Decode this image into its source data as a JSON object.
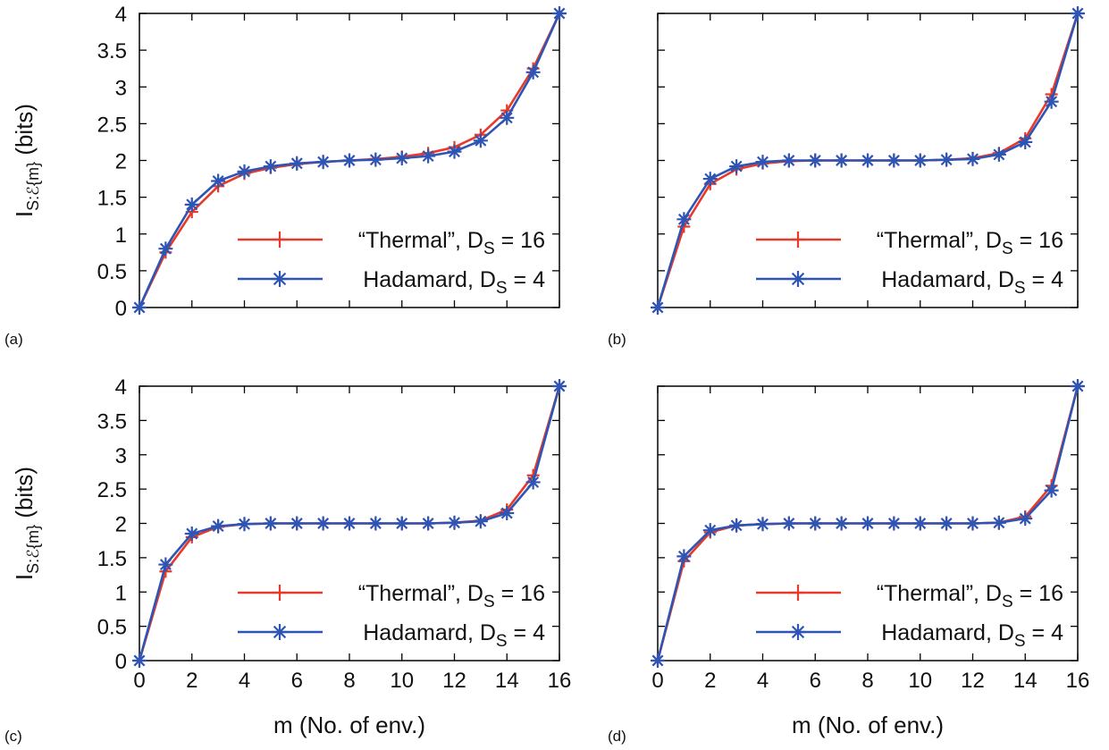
{
  "figure": {
    "ylabel_main": "I",
    "ylabel_sub": "S:ℰ{m}",
    "ylabel_unit": "(bits)",
    "xlabel": "m (No. of env.)"
  },
  "chart_data": [
    {
      "type": "line",
      "panel_label": "(a)",
      "xlim": [
        0,
        16
      ],
      "ylim": [
        0,
        4
      ],
      "x_ticks": [
        "0",
        "2",
        "4",
        "6",
        "8",
        "10",
        "12",
        "14",
        "16"
      ],
      "y_ticks": [
        "0",
        "0.5",
        "1",
        "1.5",
        "2",
        "2.5",
        "3",
        "3.5",
        "4"
      ],
      "show_x_ticklabels": false,
      "show_y_ticklabels": true,
      "show_ylabel": true,
      "show_xlabel": false,
      "legend_position": "bottom-right",
      "x": [
        0,
        1,
        2,
        3,
        4,
        5,
        6,
        7,
        8,
        9,
        10,
        11,
        12,
        13,
        14,
        15,
        16
      ],
      "series": [
        {
          "name_main": "“Thermal”, D",
          "name_sub": "S",
          "name_tail": " = 16",
          "color": "#e8392a",
          "marker": "plus",
          "values": [
            0,
            0.75,
            1.3,
            1.65,
            1.82,
            1.9,
            1.95,
            1.98,
            2.0,
            2.02,
            2.05,
            2.1,
            2.18,
            2.35,
            2.68,
            3.25,
            4.0
          ]
        },
        {
          "name_main": "Hadamard, D",
          "name_sub": "S",
          "name_tail": " = 4",
          "color": "#2f55b4",
          "marker": "star",
          "values": [
            0,
            0.8,
            1.4,
            1.72,
            1.85,
            1.92,
            1.96,
            1.98,
            2.0,
            2.01,
            2.03,
            2.06,
            2.12,
            2.27,
            2.58,
            3.2,
            4.0
          ]
        }
      ]
    },
    {
      "type": "line",
      "panel_label": "(b)",
      "xlim": [
        0,
        16
      ],
      "ylim": [
        0,
        4
      ],
      "x_ticks": [
        "0",
        "2",
        "4",
        "6",
        "8",
        "10",
        "12",
        "14",
        "16"
      ],
      "y_ticks": [
        "0",
        "0.5",
        "1",
        "1.5",
        "2",
        "2.5",
        "3",
        "3.5",
        "4"
      ],
      "show_x_ticklabels": false,
      "show_y_ticklabels": false,
      "show_ylabel": false,
      "show_xlabel": false,
      "legend_position": "bottom-right",
      "x": [
        0,
        1,
        2,
        3,
        4,
        5,
        6,
        7,
        8,
        9,
        10,
        11,
        12,
        13,
        14,
        15,
        16
      ],
      "series": [
        {
          "name_main": "“Thermal”, D",
          "name_sub": "S",
          "name_tail": " = 16",
          "color": "#e8392a",
          "marker": "plus",
          "values": [
            0,
            1.1,
            1.68,
            1.88,
            1.96,
            1.99,
            2.0,
            2.0,
            2.0,
            2.0,
            2.0,
            2.01,
            2.03,
            2.1,
            2.3,
            2.9,
            4.0
          ]
        },
        {
          "name_main": "Hadamard, D",
          "name_sub": "S",
          "name_tail": " = 4",
          "color": "#2f55b4",
          "marker": "star",
          "values": [
            0,
            1.2,
            1.75,
            1.92,
            1.98,
            2.0,
            2.0,
            2.0,
            2.0,
            2.0,
            2.0,
            2.01,
            2.02,
            2.08,
            2.25,
            2.8,
            4.0
          ]
        }
      ]
    },
    {
      "type": "line",
      "panel_label": "(c)",
      "xlim": [
        0,
        16
      ],
      "ylim": [
        0,
        4
      ],
      "x_ticks": [
        "0",
        "2",
        "4",
        "6",
        "8",
        "10",
        "12",
        "14",
        "16"
      ],
      "y_ticks": [
        "0",
        "0.5",
        "1",
        "1.5",
        "2",
        "2.5",
        "3",
        "3.5",
        "4"
      ],
      "show_x_ticklabels": true,
      "show_y_ticklabels": true,
      "show_ylabel": true,
      "show_xlabel": true,
      "legend_position": "bottom-right",
      "x": [
        0,
        1,
        2,
        3,
        4,
        5,
        6,
        7,
        8,
        9,
        10,
        11,
        12,
        13,
        14,
        15,
        16
      ],
      "series": [
        {
          "name_main": "“Thermal”, D",
          "name_sub": "S",
          "name_tail": " = 16",
          "color": "#e8392a",
          "marker": "plus",
          "values": [
            0,
            1.3,
            1.8,
            1.95,
            1.99,
            2.0,
            2.0,
            2.0,
            2.0,
            2.0,
            2.0,
            2.0,
            2.01,
            2.04,
            2.2,
            2.7,
            4.0
          ]
        },
        {
          "name_main": "Hadamard, D",
          "name_sub": "S",
          "name_tail": " = 4",
          "color": "#2f55b4",
          "marker": "star",
          "values": [
            0,
            1.4,
            1.85,
            1.96,
            1.99,
            2.0,
            2.0,
            2.0,
            2.0,
            2.0,
            2.0,
            2.0,
            2.01,
            2.03,
            2.15,
            2.6,
            4.0
          ]
        }
      ]
    },
    {
      "type": "line",
      "panel_label": "(d)",
      "xlim": [
        0,
        16
      ],
      "ylim": [
        0,
        4
      ],
      "x_ticks": [
        "0",
        "2",
        "4",
        "6",
        "8",
        "10",
        "12",
        "14",
        "16"
      ],
      "y_ticks": [
        "0",
        "0.5",
        "1",
        "1.5",
        "2",
        "2.5",
        "3",
        "3.5",
        "4"
      ],
      "show_x_ticklabels": true,
      "show_y_ticklabels": false,
      "show_ylabel": false,
      "show_xlabel": true,
      "legend_position": "bottom-right",
      "x": [
        0,
        1,
        2,
        3,
        4,
        5,
        6,
        7,
        8,
        9,
        10,
        11,
        12,
        13,
        14,
        15,
        16
      ],
      "series": [
        {
          "name_main": "“Thermal”, D",
          "name_sub": "S",
          "name_tail": " = 16",
          "color": "#e8392a",
          "marker": "plus",
          "values": [
            0,
            1.45,
            1.87,
            1.97,
            1.99,
            2.0,
            2.0,
            2.0,
            2.0,
            2.0,
            2.0,
            2.0,
            2.0,
            2.01,
            2.1,
            2.55,
            4.0
          ]
        },
        {
          "name_main": "Hadamard, D",
          "name_sub": "S",
          "name_tail": " = 4",
          "color": "#2f55b4",
          "marker": "star",
          "values": [
            0,
            1.52,
            1.9,
            1.97,
            1.99,
            2.0,
            2.0,
            2.0,
            2.0,
            2.0,
            2.0,
            2.0,
            2.0,
            2.01,
            2.07,
            2.48,
            4.0
          ]
        }
      ]
    }
  ]
}
